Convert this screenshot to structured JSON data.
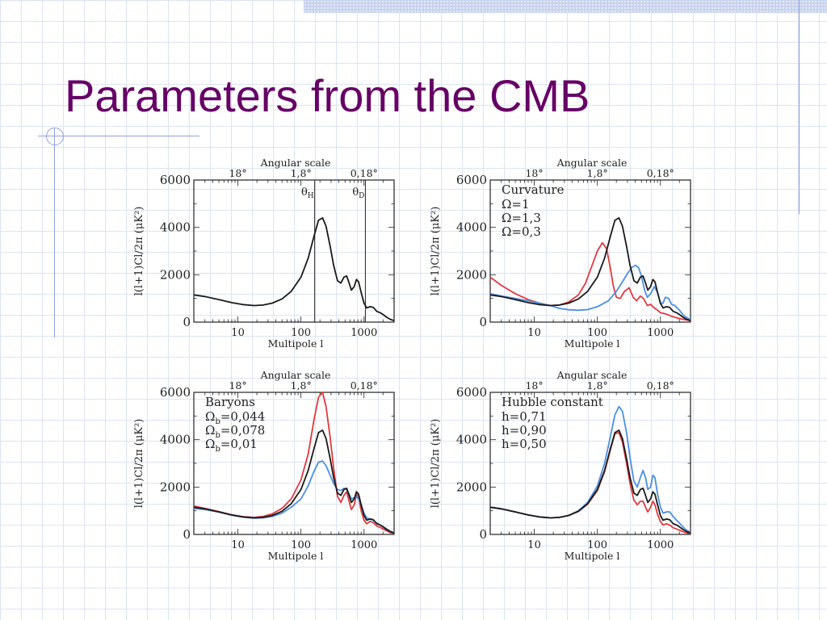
{
  "slide": {
    "title": "Parameters from the CMB"
  },
  "colors": {
    "title": "#660066",
    "black": "#1a1a1a",
    "red": "#e0393e",
    "blue": "#4a8fe0",
    "frame": "#8fa1dc"
  },
  "chart_data": [
    {
      "type": "line",
      "panel": "top-left",
      "top_axis_title": "Angular scale",
      "top_ticks": [
        "18°",
        "1,8°",
        "0,18°"
      ],
      "top_tick_l": [
        10,
        100,
        1000
      ],
      "xlabel": "Multipole l",
      "ylabel": "l(l+1)Cl/2π (μK²)",
      "xscale": "log",
      "xlim": [
        2,
        3000
      ],
      "ylim": [
        0,
        6000
      ],
      "x_ticks": [
        10,
        100,
        1000
      ],
      "y_ticks": [
        0,
        2000,
        4000,
        6000
      ],
      "legend_title": "",
      "markers": [
        {
          "label": "θH",
          "l": 165
        },
        {
          "label": "θD",
          "l": 1050
        }
      ],
      "series": [
        {
          "name": "",
          "color": "#1a1a1a",
          "l": [
            2,
            3,
            5,
            8,
            12,
            18,
            25,
            35,
            50,
            70,
            100,
            130,
            160,
            190,
            220,
            250,
            290,
            330,
            380,
            430,
            480,
            530,
            580,
            630,
            700,
            760,
            820,
            900,
            1000,
            1100,
            1250,
            1400,
            1600,
            1800,
            2000,
            2300,
            2600,
            3000
          ],
          "values": [
            1150,
            1080,
            950,
            820,
            740,
            700,
            720,
            800,
            980,
            1300,
            1900,
            2700,
            3600,
            4300,
            4400,
            4050,
            3200,
            2400,
            1750,
            1650,
            1900,
            1950,
            1650,
            1350,
            1500,
            1800,
            1700,
            1250,
            800,
            600,
            650,
            620,
            450,
            400,
            320,
            200,
            120,
            60
          ]
        }
      ]
    },
    {
      "type": "line",
      "panel": "top-right",
      "top_axis_title": "Angular scale",
      "top_ticks": [
        "18°",
        "1,8°",
        "0,18°"
      ],
      "top_tick_l": [
        10,
        100,
        1000
      ],
      "xlabel": "Multipole l",
      "ylabel": "l(l+1)Cl/2π (μK²)",
      "xscale": "log",
      "xlim": [
        2,
        3000
      ],
      "ylim": [
        0,
        6000
      ],
      "x_ticks": [
        10,
        100,
        1000
      ],
      "y_ticks": [
        0,
        2000,
        4000,
        6000
      ],
      "legend_title": "Curvature",
      "series": [
        {
          "name": "Ω=1",
          "color": "#1a1a1a",
          "l": [
            2,
            3,
            5,
            8,
            12,
            18,
            25,
            35,
            50,
            70,
            100,
            130,
            160,
            190,
            220,
            250,
            290,
            330,
            380,
            430,
            480,
            530,
            580,
            630,
            700,
            760,
            820,
            900,
            1000,
            1100,
            1250,
            1400,
            1600,
            1800,
            2000,
            2300,
            2600,
            3000
          ],
          "values": [
            1150,
            1080,
            950,
            820,
            740,
            700,
            720,
            800,
            980,
            1300,
            1900,
            2700,
            3600,
            4300,
            4400,
            4050,
            3200,
            2400,
            1750,
            1650,
            1900,
            1950,
            1650,
            1350,
            1500,
            1800,
            1700,
            1250,
            800,
            600,
            650,
            620,
            450,
            400,
            320,
            200,
            120,
            60
          ]
        },
        {
          "name": "Ω=1,3",
          "color": "#e0393e",
          "l": [
            2,
            3,
            5,
            8,
            12,
            18,
            25,
            35,
            50,
            65,
            80,
            100,
            120,
            140,
            160,
            180,
            200,
            230,
            270,
            320,
            370,
            420,
            480,
            540,
            620,
            700,
            800,
            900,
            1000,
            1200,
            1500,
            2000,
            3000
          ],
          "values": [
            1900,
            1550,
            1200,
            950,
            800,
            700,
            720,
            850,
            1150,
            1650,
            2300,
            3000,
            3350,
            3100,
            2300,
            1500,
            1050,
            1000,
            1300,
            1450,
            1050,
            900,
            1100,
            1000,
            700,
            750,
            600,
            500,
            400,
            350,
            250,
            150,
            60
          ]
        },
        {
          "name": "Ω=0,3",
          "color": "#4a8fe0",
          "l": [
            2,
            3,
            5,
            8,
            12,
            18,
            25,
            35,
            50,
            70,
            100,
            150,
            200,
            250,
            300,
            350,
            400,
            450,
            500,
            560,
            620,
            700,
            800,
            900,
            1000,
            1100,
            1200,
            1350,
            1500,
            1700,
            2000,
            2400,
            3000
          ],
          "values": [
            1200,
            1100,
            1000,
            900,
            800,
            700,
            580,
            520,
            500,
            530,
            650,
            900,
            1300,
            1700,
            2050,
            2300,
            2400,
            2300,
            1950,
            1350,
            1050,
            1200,
            1500,
            1250,
            800,
            800,
            1050,
            1000,
            750,
            700,
            500,
            250,
            100
          ]
        }
      ]
    },
    {
      "type": "line",
      "panel": "bottom-left",
      "top_axis_title": "Angular scale",
      "top_ticks": [
        "18°",
        "1,8°",
        "0,18°"
      ],
      "top_tick_l": [
        10,
        100,
        1000
      ],
      "xlabel": "Multipole l",
      "ylabel": "l(l+1)Cl/2π (μK²)",
      "xscale": "log",
      "xlim": [
        2,
        3000
      ],
      "ylim": [
        0,
        6000
      ],
      "x_ticks": [
        10,
        100,
        1000
      ],
      "y_ticks": [
        0,
        2000,
        4000,
        6000
      ],
      "legend_title": "Baryons",
      "series": [
        {
          "name": "Ωb=0,044",
          "color": "#1a1a1a",
          "l": [
            2,
            3,
            5,
            8,
            12,
            18,
            25,
            35,
            50,
            70,
            100,
            130,
            160,
            190,
            220,
            250,
            290,
            330,
            380,
            430,
            480,
            530,
            580,
            630,
            700,
            760,
            820,
            900,
            1000,
            1100,
            1250,
            1400,
            1600,
            1800,
            2000,
            2300,
            2600,
            3000
          ],
          "values": [
            1150,
            1080,
            950,
            820,
            740,
            700,
            720,
            800,
            980,
            1300,
            1900,
            2700,
            3600,
            4300,
            4400,
            4050,
            3200,
            2400,
            1750,
            1650,
            1900,
            1950,
            1650,
            1350,
            1500,
            1800,
            1700,
            1250,
            800,
            600,
            650,
            620,
            450,
            400,
            320,
            200,
            120,
            60
          ]
        },
        {
          "name": "Ωb=0,078",
          "color": "#e0393e",
          "l": [
            2,
            3,
            5,
            8,
            12,
            18,
            25,
            35,
            50,
            70,
            100,
            130,
            160,
            190,
            220,
            250,
            290,
            330,
            380,
            430,
            480,
            530,
            580,
            630,
            700,
            760,
            820,
            900,
            1000,
            1100,
            1250,
            1400,
            1600,
            1800,
            2000,
            2300,
            2600,
            3000
          ],
          "values": [
            1200,
            1100,
            960,
            830,
            750,
            720,
            760,
            870,
            1100,
            1500,
            2300,
            3400,
            4800,
            5800,
            6000,
            5400,
            4100,
            2800,
            1600,
            1350,
            1650,
            1800,
            1400,
            1050,
            1250,
            1700,
            1550,
            1000,
            600,
            450,
            550,
            500,
            350,
            300,
            230,
            150,
            80,
            40
          ]
        },
        {
          "name": "Ωb=0,01",
          "color": "#4a8fe0",
          "l": [
            2,
            3,
            5,
            8,
            12,
            18,
            25,
            35,
            50,
            70,
            100,
            130,
            160,
            190,
            220,
            250,
            290,
            330,
            380,
            430,
            480,
            530,
            580,
            630,
            700,
            760,
            820,
            900,
            1000,
            1100,
            1250,
            1400,
            1600,
            1800,
            2000,
            2300,
            2600,
            3000
          ],
          "values": [
            1100,
            1050,
            940,
            810,
            730,
            690,
            700,
            760,
            900,
            1150,
            1500,
            2050,
            2650,
            3050,
            3100,
            2900,
            2500,
            2150,
            1900,
            1850,
            1950,
            1900,
            1700,
            1500,
            1550,
            1600,
            1500,
            1250,
            900,
            700,
            650,
            600,
            480,
            400,
            330,
            230,
            140,
            70
          ]
        }
      ]
    },
    {
      "type": "line",
      "panel": "bottom-right",
      "top_axis_title": "Angular scale",
      "top_ticks": [
        "18°",
        "1,8°",
        "0,18°"
      ],
      "top_tick_l": [
        10,
        100,
        1000
      ],
      "xlabel": "Multipole l",
      "ylabel": "l(l+1)Cl/2π (μK²)",
      "xscale": "log",
      "xlim": [
        2,
        3000
      ],
      "ylim": [
        0,
        6000
      ],
      "x_ticks": [
        10,
        100,
        1000
      ],
      "y_ticks": [
        0,
        2000,
        4000,
        6000
      ],
      "legend_title": "Hubble constant",
      "series": [
        {
          "name": "h=0,71",
          "color": "#1a1a1a",
          "l": [
            2,
            3,
            5,
            8,
            12,
            18,
            25,
            35,
            50,
            70,
            100,
            130,
            160,
            190,
            220,
            250,
            290,
            330,
            380,
            430,
            480,
            530,
            580,
            630,
            700,
            760,
            820,
            900,
            1000,
            1100,
            1250,
            1400,
            1600,
            1800,
            2000,
            2300,
            2600,
            3000
          ],
          "values": [
            1150,
            1080,
            950,
            820,
            740,
            700,
            720,
            800,
            980,
            1300,
            1900,
            2700,
            3600,
            4300,
            4400,
            4050,
            3200,
            2400,
            1750,
            1650,
            1900,
            1950,
            1650,
            1350,
            1500,
            1800,
            1700,
            1250,
            800,
            600,
            650,
            620,
            450,
            400,
            320,
            200,
            120,
            60
          ]
        },
        {
          "name": "h=0,90",
          "color": "#e0393e",
          "l": [
            2,
            3,
            5,
            8,
            12,
            18,
            25,
            35,
            50,
            70,
            100,
            130,
            160,
            190,
            220,
            250,
            290,
            330,
            380,
            430,
            480,
            530,
            580,
            630,
            700,
            760,
            820,
            900,
            1000,
            1100,
            1250,
            1400,
            1600,
            1800,
            2000,
            2300,
            2600,
            3000
          ],
          "values": [
            1150,
            1080,
            950,
            820,
            740,
            700,
            720,
            800,
            970,
            1280,
            1850,
            2650,
            3550,
            4250,
            4300,
            3900,
            3000,
            2150,
            1450,
            1250,
            1400,
            1400,
            1150,
            950,
            1150,
            1400,
            1250,
            850,
            550,
            400,
            450,
            400,
            280,
            230,
            180,
            110,
            60,
            30
          ]
        },
        {
          "name": "h=0,50",
          "color": "#4a8fe0",
          "l": [
            2,
            3,
            5,
            8,
            12,
            18,
            25,
            35,
            50,
            70,
            100,
            130,
            160,
            190,
            220,
            250,
            290,
            330,
            380,
            430,
            480,
            530,
            580,
            630,
            700,
            760,
            820,
            900,
            1000,
            1100,
            1250,
            1400,
            1600,
            1800,
            2000,
            2300,
            2600,
            3000
          ],
          "values": [
            1150,
            1080,
            950,
            820,
            740,
            700,
            720,
            800,
            1000,
            1350,
            2050,
            3000,
            4100,
            5050,
            5400,
            5200,
            4300,
            3250,
            2250,
            2000,
            2400,
            2700,
            2400,
            1900,
            2000,
            2500,
            2400,
            1700,
            1150,
            900,
            950,
            950,
            750,
            600,
            480,
            300,
            180,
            90
          ]
        }
      ]
    }
  ]
}
